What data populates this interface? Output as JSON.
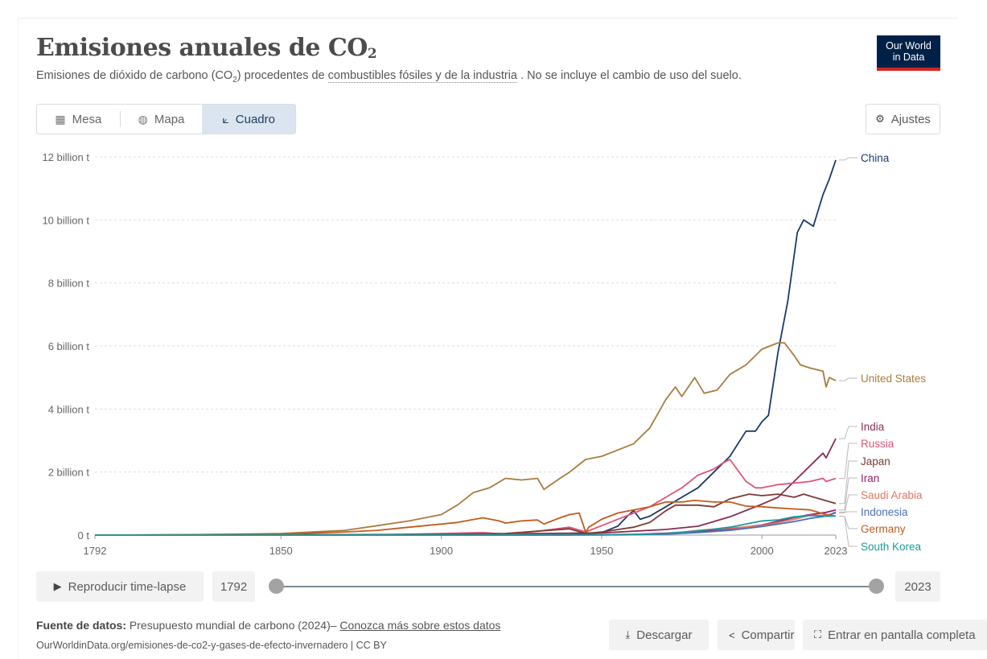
{
  "header": {
    "title": "Emisiones anuales de CO",
    "title_sub": "2",
    "subtitle_prefix": "Emisiones de dióxido de carbono (CO",
    "subtitle_sub": "2",
    "subtitle_mid": ") procedentes de ",
    "subtitle_link": "combustibles fósiles y de la industria",
    "subtitle_suffix": " . No se incluye el cambio de uso del suelo.",
    "logo_line1": "Our World",
    "logo_line2": "in Data"
  },
  "tabs": [
    {
      "label": "Mesa",
      "icon": "table-icon",
      "active": false
    },
    {
      "label": "Mapa",
      "icon": "globe-icon",
      "active": false
    },
    {
      "label": "Cuadro",
      "icon": "line-chart-icon",
      "active": true
    }
  ],
  "settings_label": "Ajustes",
  "chart_data": {
    "type": "line",
    "xlim": [
      1792,
      2023
    ],
    "ylim": [
      0,
      12000000000
    ],
    "x_ticks": [
      1792,
      1850,
      1900,
      1950,
      2000,
      2023
    ],
    "y_ticks": [
      {
        "value": 0,
        "label": "0 t"
      },
      {
        "value": 2000000000,
        "label": "2 billion t"
      },
      {
        "value": 4000000000,
        "label": "4 billion t"
      },
      {
        "value": 6000000000,
        "label": "6 billion t"
      },
      {
        "value": 8000000000,
        "label": "8 billion t"
      },
      {
        "value": 10000000000,
        "label": "10 billion t"
      },
      {
        "value": 12000000000,
        "label": "12 billion t"
      }
    ],
    "grid": "horizontal dotted",
    "legend": "right, labels at line ends",
    "series": [
      {
        "name": "China",
        "color": "#1a3a6b",
        "x": [
          1792,
          1900,
          1940,
          1950,
          1955,
          1958,
          1960,
          1962,
          1965,
          1970,
          1975,
          1980,
          1985,
          1990,
          1995,
          1998,
          2000,
          2002,
          2005,
          2008,
          2011,
          2013,
          2016,
          2019,
          2021,
          2023
        ],
        "y": [
          0,
          0,
          0,
          80000000.0,
          280000000.0,
          600000000.0,
          780000000.0,
          500000000.0,
          600000000.0,
          900000000.0,
          1200000000.0,
          1500000000.0,
          2000000000.0,
          2500000000.0,
          3300000000.0,
          3300000000.0,
          3600000000.0,
          3800000000.0,
          5800000000.0,
          7400000000.0,
          9600000000.0,
          10000000000.0,
          9800000000.0,
          10800000000.0,
          11300000000.0,
          11900000000.0
        ]
      },
      {
        "name": "United States",
        "color": "#a97c3f",
        "x": [
          1792,
          1820,
          1850,
          1870,
          1880,
          1890,
          1900,
          1905,
          1910,
          1915,
          1920,
          1925,
          1930,
          1932,
          1937,
          1940,
          1945,
          1950,
          1955,
          1960,
          1965,
          1970,
          1973,
          1975,
          1979,
          1982,
          1986,
          1990,
          1995,
          2000,
          2005,
          2007,
          2010,
          2012,
          2015,
          2019,
          2020,
          2021,
          2023
        ],
        "y": [
          0,
          5000000.0,
          50000000.0,
          150000000.0,
          300000000.0,
          450000000.0,
          650000000.0,
          950000000.0,
          1350000000.0,
          1500000000.0,
          1800000000.0,
          1750000000.0,
          1800000000.0,
          1450000000.0,
          1800000000.0,
          2000000000.0,
          2400000000.0,
          2500000000.0,
          2700000000.0,
          2900000000.0,
          3400000000.0,
          4300000000.0,
          4700000000.0,
          4400000000.0,
          5000000000.0,
          4500000000.0,
          4600000000.0,
          5100000000.0,
          5400000000.0,
          5900000000.0,
          6100000000.0,
          6100000000.0,
          5700000000.0,
          5400000000.0,
          5300000000.0,
          5200000000.0,
          4700000000.0,
          5000000000.0,
          4900000000.0
        ]
      },
      {
        "name": "India",
        "color": "#8b2c50",
        "x": [
          1792,
          1900,
          1950,
          1970,
          1980,
          1990,
          2000,
          2005,
          2010,
          2015,
          2019,
          2020,
          2023
        ],
        "y": [
          0,
          20000000.0,
          70000000.0,
          180000000.0,
          280000000.0,
          580000000.0,
          980000000.0,
          1200000000.0,
          1700000000.0,
          2200000000.0,
          2600000000.0,
          2450000000.0,
          3060000000.0
        ]
      },
      {
        "name": "Russia",
        "color": "#dd5577",
        "x": [
          1792,
          1880,
          1900,
          1913,
          1920,
          1930,
          1940,
          1945,
          1950,
          1955,
          1960,
          1965,
          1970,
          1975,
          1980,
          1985,
          1988,
          1990,
          1995,
          1998,
          2000,
          2005,
          2010,
          2015,
          2019,
          2020,
          2023
        ],
        "y": [
          0,
          5000000.0,
          50000000.0,
          80000000.0,
          30000000.0,
          120000000.0,
          250000000.0,
          100000000.0,
          300000000.0,
          500000000.0,
          700000000.0,
          900000000.0,
          1200000000.0,
          1500000000.0,
          1900000000.0,
          2100000000.0,
          2300000000.0,
          2400000000.0,
          1700000000.0,
          1500000000.0,
          1500000000.0,
          1600000000.0,
          1650000000.0,
          1700000000.0,
          1800000000.0,
          1700000000.0,
          1800000000.0
        ]
      },
      {
        "name": "Japan",
        "color": "#7b3b34",
        "x": [
          1792,
          1900,
          1920,
          1940,
          1945,
          1950,
          1960,
          1965,
          1970,
          1973,
          1980,
          1985,
          1990,
          1996,
          2000,
          2005,
          2010,
          2013,
          2018,
          2023
        ],
        "y": [
          0,
          20000000.0,
          50000000.0,
          200000000.0,
          50000000.0,
          100000000.0,
          250000000.0,
          400000000.0,
          770000000.0,
          950000000.0,
          950000000.0,
          900000000.0,
          1150000000.0,
          1300000000.0,
          1250000000.0,
          1300000000.0,
          1200000000.0,
          1300000000.0,
          1150000000.0,
          1000000000.0
        ]
      },
      {
        "name": "Iran",
        "color": "#9c1e6e",
        "x": [
          1792,
          1950,
          1960,
          1970,
          1980,
          1990,
          2000,
          2010,
          2015,
          2020,
          2023
        ],
        "y": [
          0,
          10000000.0,
          20000000.0,
          60000000.0,
          120000000.0,
          200000000.0,
          320000000.0,
          560000000.0,
          650000000.0,
          720000000.0,
          800000000.0
        ]
      },
      {
        "name": "Saudi Arabia",
        "color": "#e0765e",
        "x": [
          1792,
          1950,
          1970,
          1980,
          1990,
          2000,
          2010,
          2015,
          2020,
          2023
        ],
        "y": [
          0,
          5000000.0,
          30000000.0,
          150000000.0,
          220000000.0,
          300000000.0,
          500000000.0,
          630000000.0,
          620000000.0,
          700000000.0
        ]
      },
      {
        "name": "Indonesia",
        "color": "#4a6fbf",
        "x": [
          1792,
          1950,
          1970,
          1980,
          1990,
          2000,
          2010,
          2015,
          2020,
          2023
        ],
        "y": [
          0,
          10000000.0,
          30000000.0,
          80000000.0,
          150000000.0,
          270000000.0,
          430000000.0,
          530000000.0,
          600000000.0,
          730000000.0
        ]
      },
      {
        "name": "Germany",
        "color": "#c25b1e",
        "x": [
          1792,
          1800,
          1850,
          1870,
          1880,
          1890,
          1900,
          1905,
          1913,
          1918,
          1920,
          1925,
          1930,
          1932,
          1937,
          1940,
          1943,
          1945,
          1946,
          1950,
          1955,
          1960,
          1965,
          1970,
          1975,
          1979,
          1985,
          1990,
          1995,
          2000,
          2005,
          2010,
          2015,
          2020,
          2023
        ],
        "y": [
          0,
          3000000.0,
          30000000.0,
          100000000.0,
          150000000.0,
          250000000.0,
          350000000.0,
          400000000.0,
          550000000.0,
          450000000.0,
          380000000.0,
          450000000.0,
          480000000.0,
          350000000.0,
          550000000.0,
          650000000.0,
          700000000.0,
          100000000.0,
          250000000.0,
          500000000.0,
          700000000.0,
          800000000.0,
          900000000.0,
          1050000000.0,
          1050000000.0,
          1100000000.0,
          1050000000.0,
          1050000000.0,
          920000000.0,
          900000000.0,
          860000000.0,
          830000000.0,
          800000000.0,
          650000000.0,
          600000000.0
        ]
      },
      {
        "name": "South Korea",
        "color": "#1b9a9a",
        "x": [
          1792,
          1950,
          1960,
          1970,
          1980,
          1990,
          2000,
          2005,
          2010,
          2015,
          2020,
          2023
        ],
        "y": [
          0,
          3000000.0,
          10000000.0,
          50000000.0,
          130000000.0,
          250000000.0,
          450000000.0,
          480000000.0,
          580000000.0,
          620000000.0,
          600000000.0,
          600000000.0
        ]
      }
    ]
  },
  "timeline": {
    "play_label": "Reproducir time-lapse",
    "start": "1792",
    "end": "2023",
    "start_fraction": 0,
    "end_fraction": 1
  },
  "footer": {
    "source_label": "Fuente de datos:",
    "source_text": " Presupuesto mundial de carbono (2024)– ",
    "source_link": "Conozca más sobre estos datos",
    "url_line": "OurWorldinData.org/emisiones-de-co2-y-gases-de-efecto-invernadero | CC BY",
    "download": "Descargar",
    "share": "Compartir",
    "fullscreen": "Entrar en pantalla completa"
  }
}
